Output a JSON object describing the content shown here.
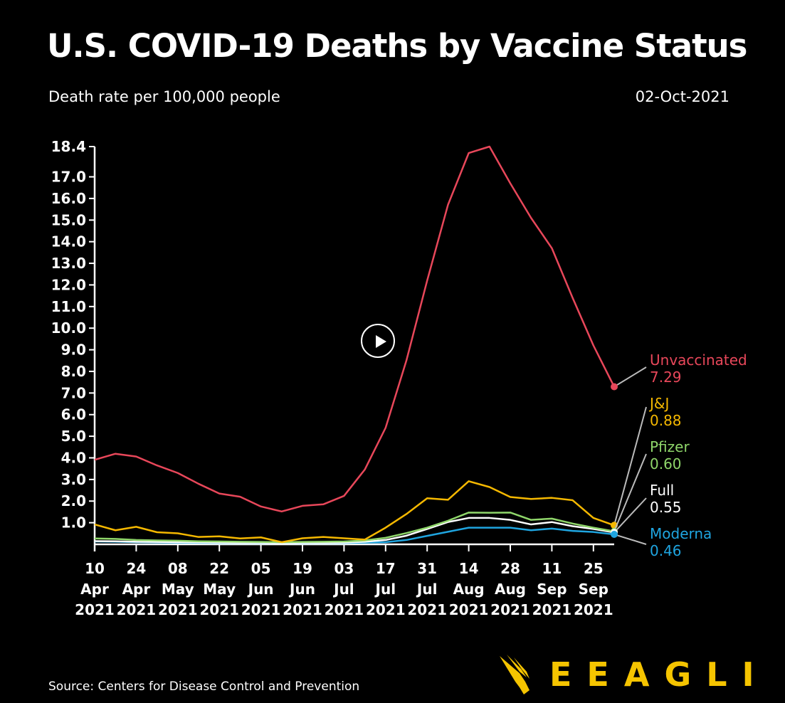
{
  "chart_data": {
    "type": "line",
    "title": "U.S. COVID-19 Deaths by Vaccine Status",
    "subtitle": "Death rate per 100,000 people",
    "date": "02-Oct-2021",
    "source": "Source: Centers for Disease Control and Prevention",
    "ylim": [
      0,
      18.4
    ],
    "yticks": [
      "18.4",
      "17.0",
      "16.0",
      "15.0",
      "14.0",
      "13.0",
      "12.0",
      "11.0",
      "10.0",
      "9.0",
      "8.0",
      "7.0",
      "6.0",
      "5.0",
      "4.0",
      "3.0",
      "2.0",
      "1.0"
    ],
    "xticks": [
      [
        "10",
        "Apr",
        "2021"
      ],
      [
        "24",
        "Apr",
        "2021"
      ],
      [
        "08",
        "May",
        "2021"
      ],
      [
        "22",
        "May",
        "2021"
      ],
      [
        "05",
        "Jun",
        "2021"
      ],
      [
        "19",
        "Jun",
        "2021"
      ],
      [
        "03",
        "Jul",
        "2021"
      ],
      [
        "17",
        "Jul",
        "2021"
      ],
      [
        "31",
        "Jul",
        "2021"
      ],
      [
        "14",
        "Aug",
        "2021"
      ],
      [
        "28",
        "Aug",
        "2021"
      ],
      [
        "11",
        "Sep",
        "2021"
      ],
      [
        "25",
        "Sep",
        "2021"
      ]
    ],
    "x_weeks": 26,
    "series": [
      {
        "name": "Unvaccinated",
        "label_value": "7.29",
        "color": "#e8475a",
        "values": [
          3.91,
          4.19,
          4.06,
          3.65,
          3.3,
          2.8,
          2.35,
          2.2,
          1.75,
          1.52,
          1.78,
          1.85,
          2.24,
          3.46,
          5.39,
          8.5,
          12.2,
          15.7,
          18.1,
          18.4,
          16.7,
          15.1,
          13.7,
          11.4,
          9.2,
          7.29
        ]
      },
      {
        "name": "J&J",
        "label_value": "0.88",
        "color": "#f5b800",
        "values": [
          0.92,
          0.65,
          0.81,
          0.56,
          0.51,
          0.34,
          0.37,
          0.27,
          0.32,
          0.1,
          0.28,
          0.34,
          0.28,
          0.22,
          0.77,
          1.4,
          2.13,
          2.06,
          2.92,
          2.65,
          2.19,
          2.1,
          2.15,
          2.04,
          1.22,
          0.88
        ]
      },
      {
        "name": "Pfizer",
        "label_value": "0.60",
        "color": "#8fd66a",
        "values": [
          0.27,
          0.25,
          0.2,
          0.18,
          0.17,
          0.14,
          0.13,
          0.12,
          0.11,
          0.1,
          0.11,
          0.12,
          0.13,
          0.18,
          0.3,
          0.52,
          0.77,
          1.09,
          1.47,
          1.46,
          1.47,
          1.13,
          1.19,
          0.96,
          0.77,
          0.6
        ]
      },
      {
        "name": "Full",
        "label_value": "0.55",
        "color": "#ffffff",
        "values": [
          0.15,
          0.14,
          0.12,
          0.11,
          0.1,
          0.09,
          0.08,
          0.07,
          0.06,
          0.05,
          0.06,
          0.07,
          0.08,
          0.12,
          0.2,
          0.4,
          0.71,
          1.03,
          1.22,
          1.22,
          1.13,
          0.92,
          1.03,
          0.84,
          0.71,
          0.55
        ]
      },
      {
        "name": "Moderna",
        "label_value": "0.46",
        "color": "#1fa5e0",
        "values": [
          0.13,
          0.12,
          0.1,
          0.09,
          0.08,
          0.07,
          0.06,
          0.06,
          0.05,
          0.05,
          0.05,
          0.06,
          0.06,
          0.08,
          0.1,
          0.2,
          0.39,
          0.58,
          0.77,
          0.77,
          0.77,
          0.65,
          0.73,
          0.62,
          0.57,
          0.46
        ]
      }
    ]
  },
  "logo": {
    "text": "EEAGLI"
  }
}
